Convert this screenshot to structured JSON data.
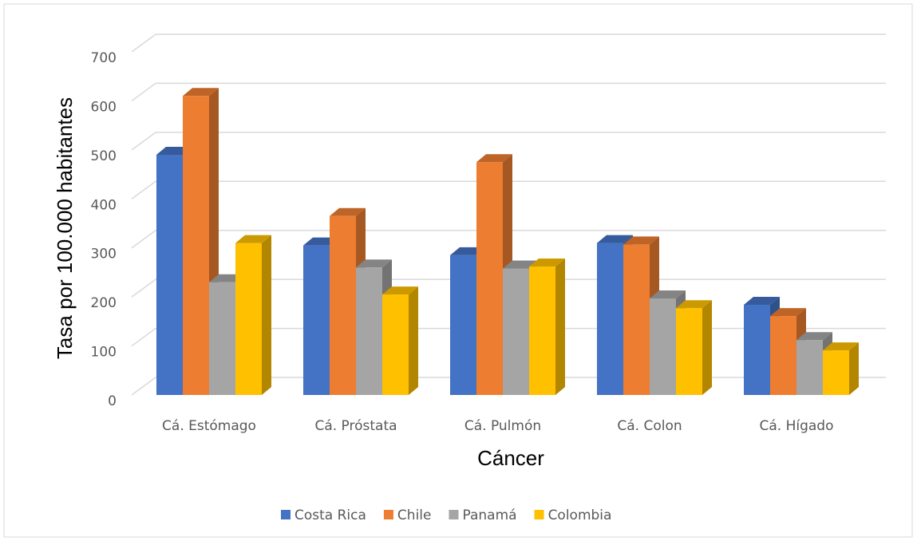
{
  "chart_data": {
    "type": "bar3d",
    "x_label": "Cáncer",
    "y_label": "Tasa por 100.000 habitantes",
    "categories": [
      "Cá. Estómago",
      "Cá. Próstata",
      "Cá. Pulmón",
      "Cá. Colon",
      "Cá. Hígado"
    ],
    "series": [
      {
        "name": "Costa Rica",
        "color": "#4472c4",
        "values": [
          490,
          305,
          285,
          310,
          184
        ]
      },
      {
        "name": "Chile",
        "color": "#ed7d31",
        "values": [
          610,
          365,
          475,
          307,
          161
        ]
      },
      {
        "name": "Panamá",
        "color": "#a5a5a5",
        "values": [
          230,
          260,
          258,
          197,
          112
        ]
      },
      {
        "name": "Colombia",
        "color": "#ffc000",
        "values": [
          310,
          205,
          262,
          177,
          91
        ]
      }
    ],
    "ylim": [
      0,
      700
    ],
    "yticks": [
      0,
      100,
      200,
      300,
      400,
      500,
      600,
      700
    ],
    "grid": true,
    "legend": "bottom"
  }
}
